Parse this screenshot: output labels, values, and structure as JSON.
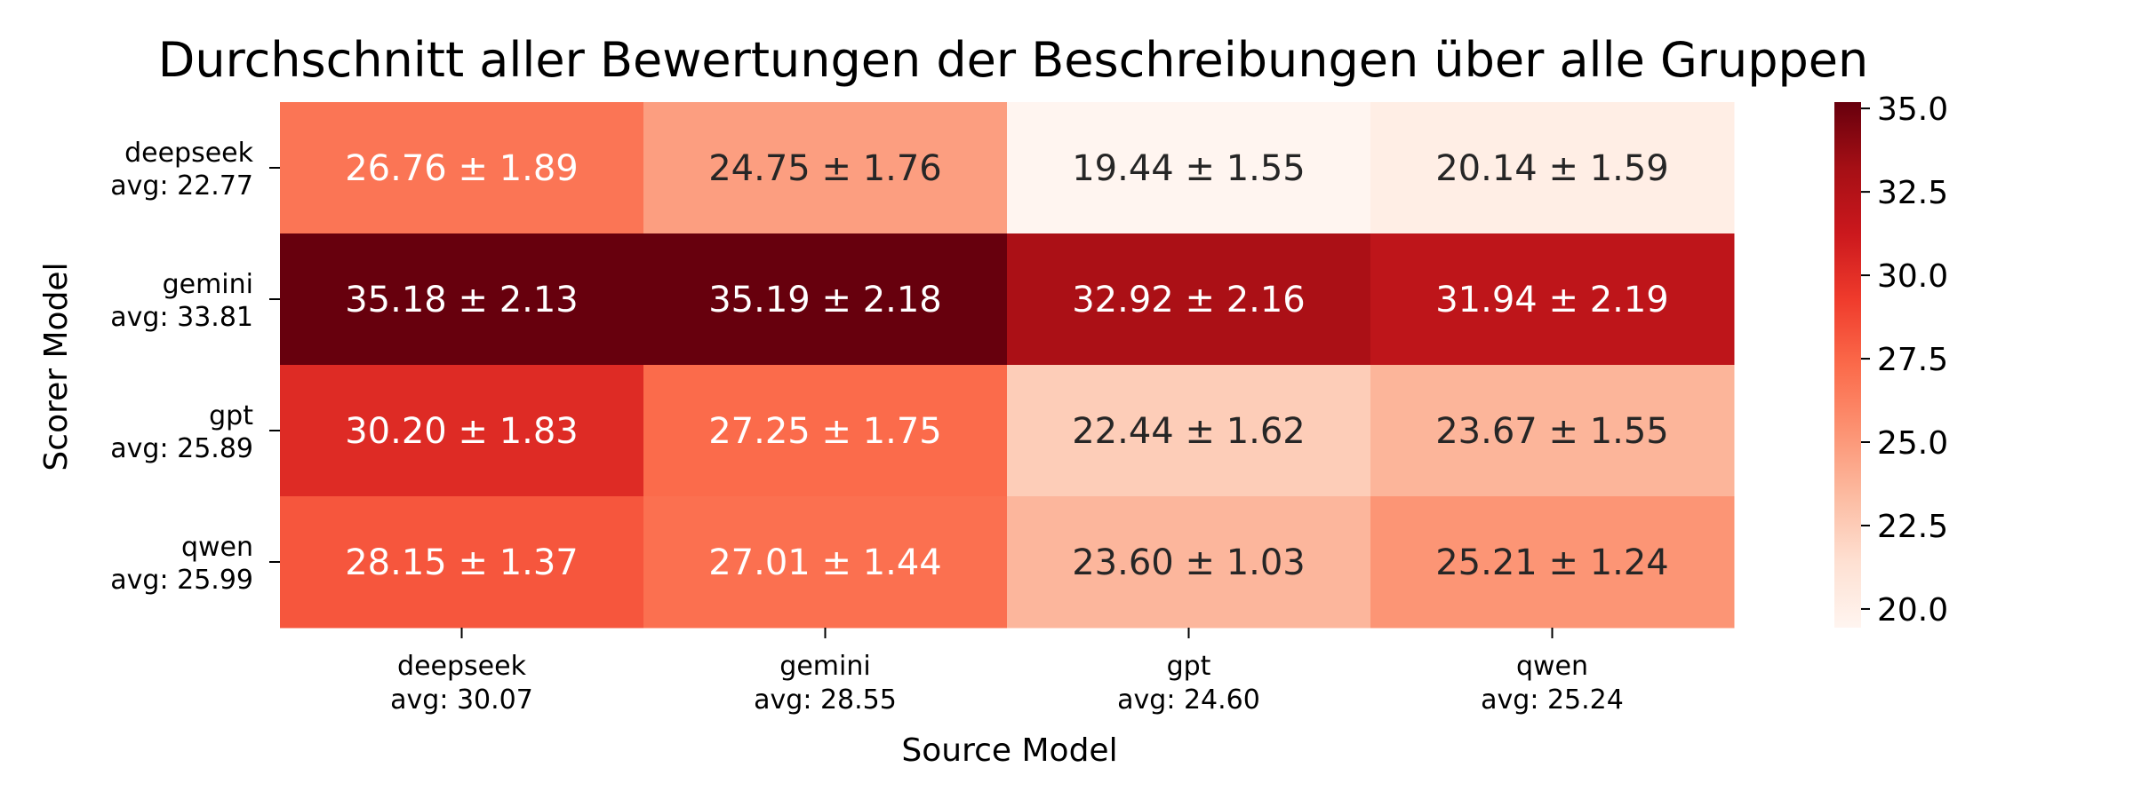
{
  "chart_data": {
    "type": "heatmap",
    "title": "Durchschnitt aller Bewertungen der Beschreibungen über alle Gruppen",
    "xlabel": "Source Model",
    "ylabel": "Scorer Model",
    "x_categories": [
      {
        "name": "deepseek",
        "avg": "avg: 30.07"
      },
      {
        "name": "gemini",
        "avg": "avg: 28.55"
      },
      {
        "name": "gpt",
        "avg": "avg: 24.60"
      },
      {
        "name": "qwen",
        "avg": "avg: 25.24"
      }
    ],
    "y_categories": [
      {
        "name": "deepseek",
        "avg": "avg: 22.77"
      },
      {
        "name": "gemini",
        "avg": "avg: 33.81"
      },
      {
        "name": "gpt",
        "avg": "avg: 25.89"
      },
      {
        "name": "qwen",
        "avg": "avg: 25.99"
      }
    ],
    "values": [
      [
        26.76,
        24.75,
        19.44,
        20.14
      ],
      [
        35.18,
        35.19,
        32.92,
        31.94
      ],
      [
        30.2,
        27.25,
        22.44,
        23.67
      ],
      [
        28.15,
        27.01,
        23.6,
        25.21
      ]
    ],
    "errors": [
      [
        1.89,
        1.76,
        1.55,
        1.59
      ],
      [
        2.13,
        2.18,
        2.16,
        2.19
      ],
      [
        1.83,
        1.75,
        1.62,
        1.55
      ],
      [
        1.37,
        1.44,
        1.03,
        1.24
      ]
    ],
    "cell_labels": [
      [
        "26.76 ± 1.89",
        "24.75 ± 1.76",
        "19.44 ± 1.55",
        "20.14 ± 1.59"
      ],
      [
        "35.18 ± 2.13",
        "35.19 ± 2.18",
        "32.92 ± 2.16",
        "31.94 ± 2.19"
      ],
      [
        "30.20 ± 1.83",
        "27.25 ± 1.75",
        "22.44 ± 1.62",
        "23.67 ± 1.55"
      ],
      [
        "28.15 ± 1.37",
        "27.01 ± 1.44",
        "23.60 ± 1.03",
        "25.21 ± 1.24"
      ]
    ],
    "colorscale": "Reds",
    "vmin": 19.44,
    "vmax": 35.19,
    "colorbar_ticks": [
      {
        "value": 20.0,
        "label": "20.0"
      },
      {
        "value": 22.5,
        "label": "22.5"
      },
      {
        "value": 25.0,
        "label": "25.0"
      },
      {
        "value": 27.5,
        "label": "27.5"
      },
      {
        "value": 30.0,
        "label": "30.0"
      },
      {
        "value": 32.5,
        "label": "32.5"
      },
      {
        "value": 35.0,
        "label": "35.0"
      }
    ],
    "legend": "colorbar right",
    "grid": false
  }
}
